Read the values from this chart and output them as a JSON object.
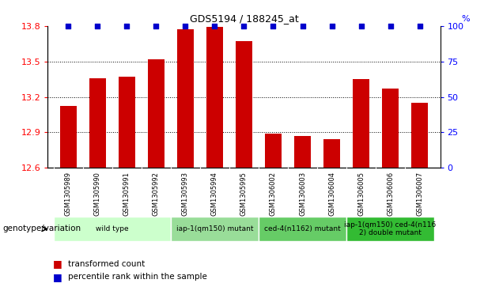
{
  "title": "GDS5194 / 188245_at",
  "samples": [
    "GSM1305989",
    "GSM1305990",
    "GSM1305991",
    "GSM1305992",
    "GSM1305993",
    "GSM1305994",
    "GSM1305995",
    "GSM1306002",
    "GSM1306003",
    "GSM1306004",
    "GSM1306005",
    "GSM1306006",
    "GSM1306007"
  ],
  "bar_values": [
    13.12,
    13.36,
    13.37,
    13.52,
    13.77,
    13.79,
    13.67,
    12.89,
    12.87,
    12.84,
    13.35,
    13.27,
    13.15
  ],
  "percentile_values": [
    100,
    100,
    100,
    100,
    100,
    100,
    100,
    100,
    100,
    100,
    100,
    100,
    100
  ],
  "bar_color": "#cc0000",
  "percentile_color": "#0000cc",
  "ylim_left": [
    12.6,
    13.8
  ],
  "ylim_right": [
    0,
    100
  ],
  "yticks_left": [
    12.6,
    12.9,
    13.2,
    13.5,
    13.8
  ],
  "yticks_right": [
    0,
    25,
    50,
    75,
    100
  ],
  "grid_lines": [
    12.9,
    13.2,
    13.5
  ],
  "groups": [
    {
      "label": "wild type",
      "start": 0,
      "end": 4,
      "color": "#ccffcc"
    },
    {
      "label": "iap-1(qm150) mutant",
      "start": 4,
      "end": 7,
      "color": "#99dd99"
    },
    {
      "label": "ced-4(n1162) mutant",
      "start": 7,
      "end": 10,
      "color": "#66cc66"
    },
    {
      "label": "iap-1(qm150) ced-4(n116\n2) double mutant",
      "start": 10,
      "end": 13,
      "color": "#33bb33"
    }
  ],
  "genotype_label": "genotype/variation",
  "legend_items": [
    {
      "label": "transformed count",
      "color": "#cc0000"
    },
    {
      "label": "percentile rank within the sample",
      "color": "#0000cc"
    }
  ],
  "bar_width": 0.55,
  "label_area_color": "#d0d0d0",
  "label_area_border_color": "#aaaaaa"
}
